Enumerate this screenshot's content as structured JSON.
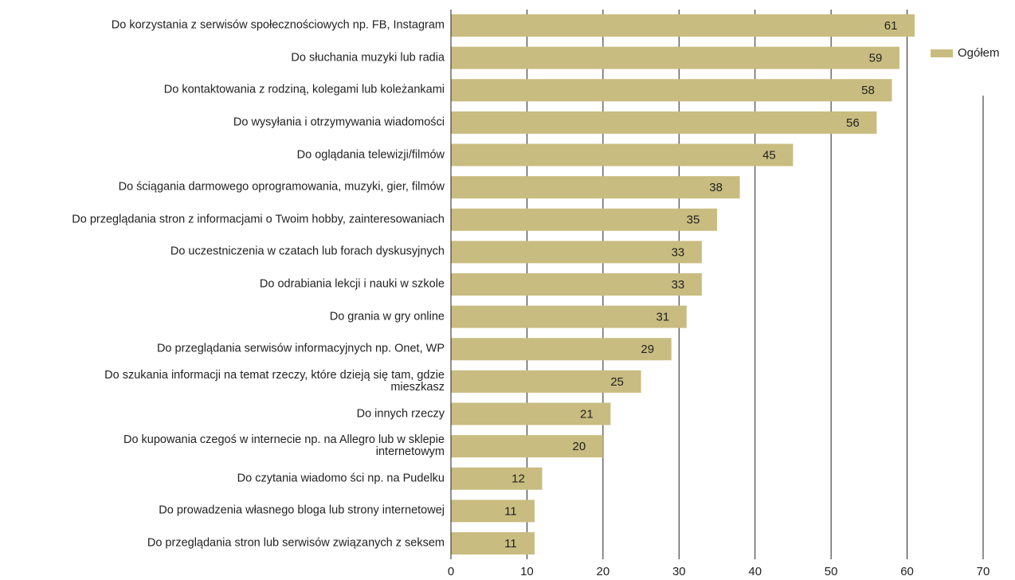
{
  "chart_data": {
    "type": "bar",
    "orientation": "horizontal",
    "categories": [
      "Do korzystania z serwisów społecznościowych np. FB, Instagram",
      "Do słuchania muzyki lub radia",
      "Do kontaktowania z rodziną, kolegami lub koleżankami",
      "Do wysyłania i otrzymywania wiadomości",
      "Do oglądania telewizji/filmów",
      "Do ściągania darmowego oprogramowania, muzyki, gier, filmów",
      "Do przeglądania stron z informacjami o Twoim hobby, zainteresowaniach",
      "Do uczestniczenia w  czatach lub forach dyskusyjnych",
      "Do odrabiania lekcji i nauki w szkole",
      "Do grania w gry online",
      "Do przeglądania serwisów informacyjnych np. Onet, WP",
      "Do szukania informacji na temat rzeczy, które dzieją się tam, gdzie\nmieszkasz",
      "Do innych rzeczy",
      "Do kupowania czegoś  w internecie np. na Allegro lub w sklepie\ninternetowym",
      "Do czytania wiadomo ści np. na Pudelku",
      "Do prowadzenia własnego bloga lub strony internetowej",
      "Do przeglądania stron lub serwisów  związanych z seksem"
    ],
    "series": [
      {
        "name": "Ogółem",
        "color": "#c9bc80",
        "values": [
          61,
          59,
          58,
          56,
          45,
          38,
          35,
          33,
          33,
          31,
          29,
          25,
          21,
          20,
          12,
          11,
          11
        ]
      }
    ],
    "xlim": [
      0,
      70
    ],
    "xticks": [
      0,
      10,
      20,
      30,
      40,
      50,
      60,
      70
    ],
    "grid": true,
    "legend": "top-right"
  }
}
